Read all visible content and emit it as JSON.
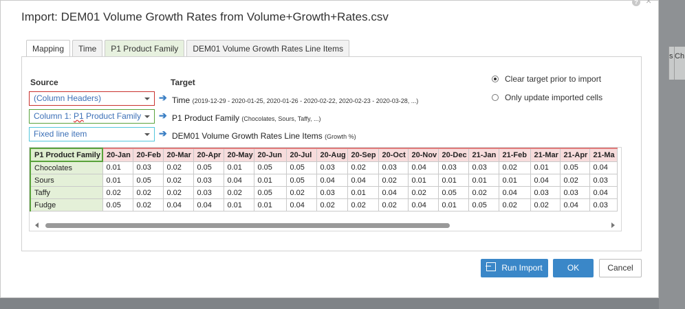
{
  "dialog": {
    "title": "Import: DEM01 Volume Growth Rates from Volume+Growth+Rates.csv",
    "help_icon": "?"
  },
  "tabs": [
    {
      "label": "Mapping",
      "active": true
    },
    {
      "label": "Time",
      "active": false
    },
    {
      "label": "P1 Product Family",
      "active": false
    },
    {
      "label": "DEM01 Volume Growth Rates Line Items",
      "active": false
    }
  ],
  "mapping": {
    "source_header": "Source",
    "target_header": "Target",
    "rows": [
      {
        "source": "(Column Headers)",
        "target": "Time",
        "detail": "(2019-12-29 - 2020-01-25, 2020-01-26 - 2020-02-22, 2020-02-23 - 2020-03-28, ...)",
        "border_color": "#c9302c"
      },
      {
        "source_pre": "Column 1: ",
        "source_underlined": "P1",
        "source_post": " Product Family",
        "target": "P1 Product Family",
        "detail": "(Chocolates, Sours, Taffy, ...)",
        "border_color": "#59a23b"
      },
      {
        "source": "Fixed line item",
        "target": "DEM01 Volume Growth Rates Line Items",
        "detail": "(Growth %)",
        "border_color": "#52c6dc"
      }
    ]
  },
  "options": {
    "clear_target": "Clear target prior to import",
    "only_update": "Only update imported cells",
    "selected": "clear_target"
  },
  "grid": {
    "corner": "P1 Product Family",
    "columns": [
      "20-Jan",
      "20-Feb",
      "20-Mar",
      "20-Apr",
      "20-May",
      "20-Jun",
      "20-Jul",
      "20-Aug",
      "20-Sep",
      "20-Oct",
      "20-Nov",
      "20-Dec",
      "21-Jan",
      "21-Feb",
      "21-Mar",
      "21-Apr",
      "21-Ma"
    ],
    "rows": [
      {
        "label": "Chocolates",
        "values": [
          "0.01",
          "0.03",
          "0.02",
          "0.05",
          "0.01",
          "0.05",
          "0.05",
          "0.03",
          "0.02",
          "0.03",
          "0.04",
          "0.03",
          "0.03",
          "0.02",
          "0.01",
          "0.05",
          "0.04"
        ]
      },
      {
        "label": "Sours",
        "values": [
          "0.01",
          "0.05",
          "0.02",
          "0.03",
          "0.04",
          "0.01",
          "0.05",
          "0.04",
          "0.04",
          "0.02",
          "0.01",
          "0.01",
          "0.01",
          "0.01",
          "0.04",
          "0.02",
          "0.03"
        ]
      },
      {
        "label": "Taffy",
        "values": [
          "0.02",
          "0.02",
          "0.02",
          "0.03",
          "0.02",
          "0.05",
          "0.02",
          "0.03",
          "0.01",
          "0.04",
          "0.02",
          "0.05",
          "0.02",
          "0.04",
          "0.03",
          "0.03",
          "0.04"
        ]
      },
      {
        "label": "Fudge",
        "values": [
          "0.05",
          "0.02",
          "0.04",
          "0.04",
          "0.01",
          "0.01",
          "0.04",
          "0.02",
          "0.02",
          "0.02",
          "0.04",
          "0.01",
          "0.05",
          "0.02",
          "0.02",
          "0.04",
          "0.03"
        ]
      }
    ]
  },
  "buttons": {
    "run_import": "Run Import",
    "ok": "OK",
    "cancel": "Cancel"
  },
  "background": {
    "col1": "s",
    "col2": "Ch"
  },
  "colors": {
    "primary": "#3a87c8",
    "source_red": "#c9302c",
    "source_green": "#59a23b",
    "source_cyan": "#52c6dc"
  }
}
